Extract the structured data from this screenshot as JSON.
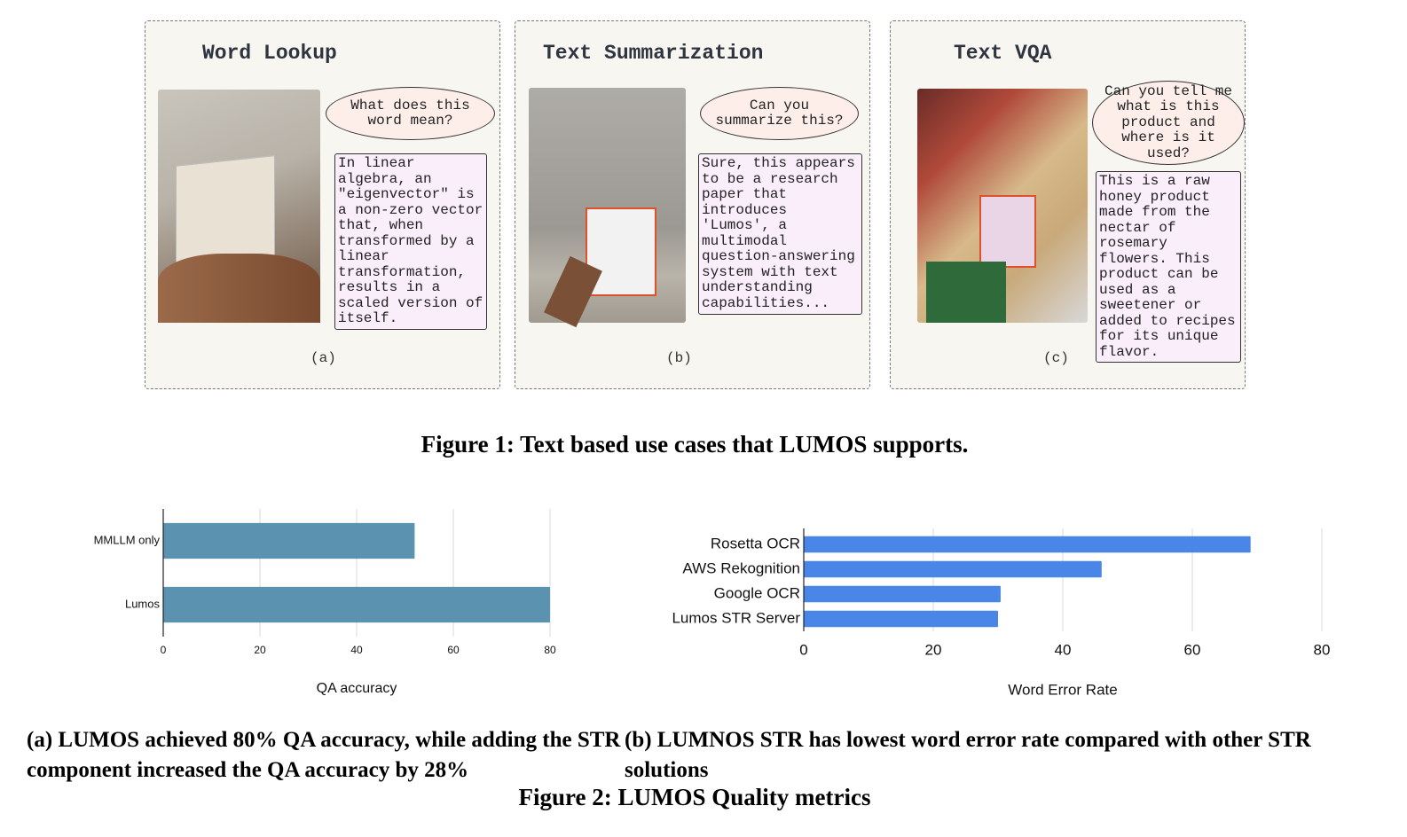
{
  "figure1": {
    "panels": [
      {
        "title": "Word Lookup",
        "question": "What does this word mean?",
        "answer": "In linear algebra, an \"eigenvector\" is a non-zero vector that, when transformed by a linear transformation, results in a scaled version of itself.",
        "label": "(a)"
      },
      {
        "title": "Text Summarization",
        "question": "Can you summarize this?",
        "answer": "Sure, this appears to be a research paper that introduces 'Lumos', a multimodal question-answering system with text understanding capabilities...",
        "label": "(b)"
      },
      {
        "title": "Text VQA",
        "question": "Can you tell me what is this product and where is it used?",
        "answer": "This is a raw honey product made from the nectar of rosemary flowers. This product can be used as a sweetener or added to recipes for its unique flavor.",
        "label": "(c)"
      }
    ],
    "caption": "Figure 1: Text based use cases that LUMOS supports."
  },
  "chart_data": [
    {
      "type": "bar",
      "orientation": "horizontal",
      "categories": [
        "MMLLM only",
        "Lumos"
      ],
      "values": [
        52,
        80
      ],
      "color": "#5b92b0",
      "xlabel": "QA accuracy",
      "xlim": [
        0,
        80
      ],
      "xticks": [
        0,
        20,
        40,
        60,
        80
      ],
      "grid": true,
      "caption": "(a) LUMOS achieved 80% QA accuracy, while adding the STR component increased the QA accuracy by 28%"
    },
    {
      "type": "bar",
      "orientation": "horizontal",
      "categories": [
        "Rosetta OCR",
        "AWS Rekognition",
        "Google OCR",
        "Lumos STR Server"
      ],
      "values": [
        69,
        46,
        30.4,
        30
      ],
      "color": "#4a86e8",
      "xlabel": "Word Error Rate",
      "xlim": [
        0,
        80
      ],
      "xticks": [
        0,
        20,
        40,
        60,
        80
      ],
      "grid": true,
      "caption": "(b) LUMNOS STR has lowest word error rate compared with other STR solutions"
    }
  ],
  "figure2_caption": "Figure 2: LUMOS Quality metrics"
}
